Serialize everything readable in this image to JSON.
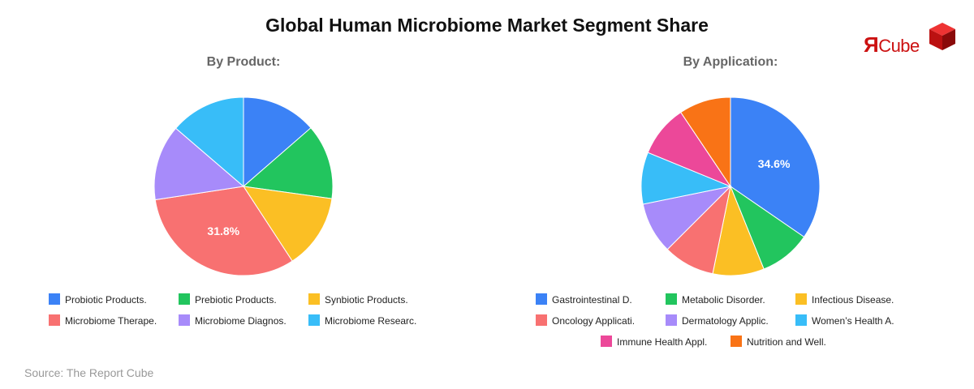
{
  "title": "Global Human Microbiome Market Segment Share",
  "source": "Source: The Report Cube",
  "logo": {
    "r_glyph": "Я",
    "word": "Cube",
    "color": "#cc1111"
  },
  "chart_data": [
    {
      "type": "pie",
      "title": "By Product:",
      "legend_placement": "bottom",
      "slices": [
        {
          "label": "Probiotic Products.",
          "value": 13.6,
          "color": "#3b82f6"
        },
        {
          "label": "Prebiotic Products.",
          "value": 13.6,
          "color": "#22c55e"
        },
        {
          "label": "Synbiotic Products.",
          "value": 13.6,
          "color": "#fbbf24"
        },
        {
          "label": "Microbiome Therape.",
          "value": 31.8,
          "color": "#f87171",
          "data_label": "31.8%"
        },
        {
          "label": "Microbiome Diagnos.",
          "value": 13.7,
          "color": "#a78bfa"
        },
        {
          "label": "Microbiome Researc.",
          "value": 13.7,
          "color": "#38bdf8"
        }
      ]
    },
    {
      "type": "pie",
      "title": "By Application:",
      "legend_placement": "bottom",
      "slices": [
        {
          "label": "Gastrointestinal D.",
          "value": 34.6,
          "color": "#3b82f6",
          "data_label": "34.6%"
        },
        {
          "label": "Metabolic Disorder.",
          "value": 9.3,
          "color": "#22c55e"
        },
        {
          "label": "Infectious Disease.",
          "value": 9.3,
          "color": "#fbbf24"
        },
        {
          "label": "Oncology Applicati.",
          "value": 9.3,
          "color": "#f87171"
        },
        {
          "label": "Dermatology Applic.",
          "value": 9.3,
          "color": "#a78bfa"
        },
        {
          "label": "Women’s Health A.",
          "value": 9.4,
          "color": "#38bdf8"
        },
        {
          "label": "Immune Health Appl.",
          "value": 9.4,
          "color": "#ec4899"
        },
        {
          "label": "Nutrition and Well.",
          "value": 9.4,
          "color": "#f97316"
        }
      ]
    }
  ]
}
